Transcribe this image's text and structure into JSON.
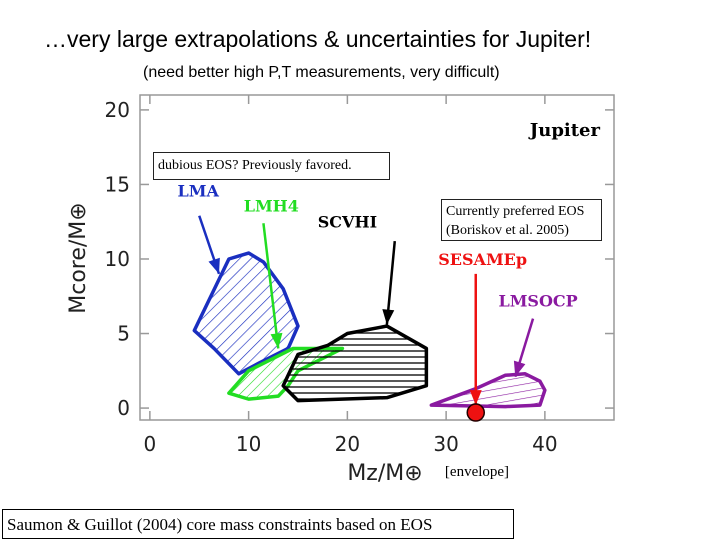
{
  "slide": {
    "title": "…very large extrapolations & uncertainties for Jupiter!",
    "subtitle": "(need better high P,T measurements, very difficult)"
  },
  "notes": {
    "dubious": "dubious EOS? Previously favored.",
    "preferred_line1": "Currently preferred EOS",
    "preferred_line2": "(Boriskov et al. 2005)",
    "envelope": "[envelope]",
    "caption": "Saumon & Guillot (2004) core mass constraints based on EOS"
  },
  "chart_data": {
    "type": "scatter",
    "title": "Jupiter",
    "xlabel": "Mz/M⊕",
    "ylabel": "Mcore/M⊕",
    "xlim": [
      -1,
      47
    ],
    "ylim": [
      -0.8,
      21
    ],
    "xticks": [
      0,
      10,
      20,
      30,
      40
    ],
    "yticks": [
      0,
      5,
      10,
      15,
      20
    ],
    "colors": {
      "LMA": "#1a2fc0",
      "LMH4": "#22dd22",
      "SCVHI": "#000000",
      "SESAMEp": "#ee1111",
      "LMSOCP": "#8a1aa0"
    },
    "series": [
      {
        "name": "LMA",
        "label": "LMA",
        "hatch": "diagonal",
        "region": [
          [
            4.5,
            5.2
          ],
          [
            8,
            10
          ],
          [
            10,
            10.4
          ],
          [
            11.5,
            9.8
          ],
          [
            13.5,
            8
          ],
          [
            15,
            5.5
          ],
          [
            14,
            4
          ],
          [
            11,
            3
          ],
          [
            9,
            2.3
          ],
          [
            6.5,
            4
          ]
        ],
        "label_at": [
          2.8,
          14.2
        ],
        "arrow_from": [
          5,
          12.9
        ],
        "arrow_to": [
          7,
          9
        ]
      },
      {
        "name": "LMH4",
        "label": "LMH4",
        "hatch": "diagonal",
        "region": [
          [
            8,
            1
          ],
          [
            10,
            2.5
          ],
          [
            14.5,
            4
          ],
          [
            17,
            4
          ],
          [
            19.5,
            4
          ],
          [
            15,
            2.5
          ],
          [
            14,
            1.5
          ],
          [
            13,
            0.8
          ],
          [
            10,
            0.6
          ]
        ],
        "label_at": [
          9.5,
          13.2
        ],
        "arrow_from": [
          11.5,
          12.4
        ],
        "arrow_to": [
          13,
          4
        ]
      },
      {
        "name": "SCVHI",
        "label": "SCVHI",
        "hatch": "horizontal",
        "region": [
          [
            13.5,
            1.5
          ],
          [
            15,
            3.6
          ],
          [
            18,
            4.2
          ],
          [
            20,
            5
          ],
          [
            24,
            5.5
          ],
          [
            28,
            4
          ],
          [
            28,
            1.5
          ],
          [
            24,
            0.7
          ],
          [
            15,
            0.5
          ]
        ],
        "label_at": [
          17,
          12.1
        ],
        "arrow_from": [
          24.8,
          11.2
        ],
        "arrow_to": [
          24,
          5.6
        ]
      },
      {
        "name": "SESAMEp",
        "label": "SESAMEp",
        "hatch": "none",
        "region": [],
        "label_at": [
          29.2,
          9.6
        ],
        "arrow_from": [
          33,
          9.0
        ],
        "arrow_to": [
          33,
          0.2
        ],
        "marker": [
          33,
          -0.3
        ]
      },
      {
        "name": "LMSOCP",
        "label": "LMSOCP",
        "hatch": "diagonal",
        "region": [
          [
            28.5,
            0.2
          ],
          [
            33,
            1.3
          ],
          [
            36,
            2.2
          ],
          [
            38,
            2.3
          ],
          [
            39.5,
            1.8
          ],
          [
            40,
            1.2
          ],
          [
            39.5,
            0.2
          ],
          [
            36,
            0.1
          ]
        ],
        "label_at": [
          35.3,
          6.8
        ],
        "arrow_from": [
          38.8,
          6.0
        ],
        "arrow_to": [
          37,
          2.1
        ]
      }
    ]
  }
}
